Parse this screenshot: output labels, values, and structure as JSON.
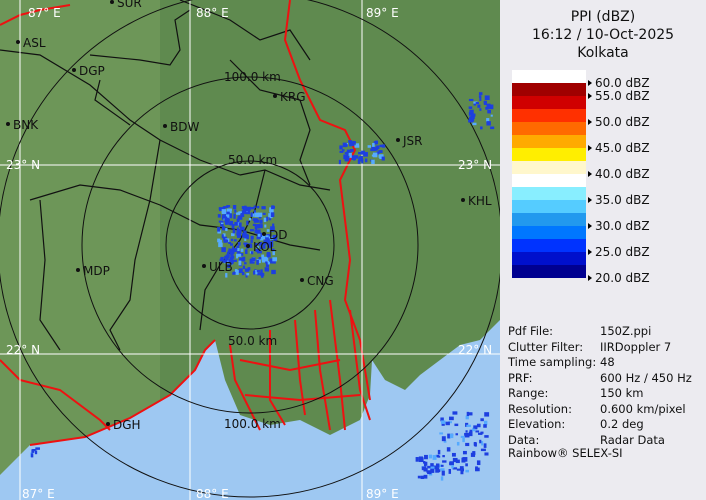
{
  "panel": {
    "title": "PPI (dBZ)",
    "datetime": "16:12 / 10-Oct-2025",
    "station": "Kolkata",
    "legend": [
      {
        "label": "60.0 dBZ",
        "color": "#ffffff"
      },
      {
        "label": "55.0 dBZ",
        "color": "#a00000"
      },
      {
        "label": "",
        "color": "#d00000"
      },
      {
        "label": "50.0 dBZ",
        "color": "#ff3000"
      },
      {
        "label": "",
        "color": "#ff6a00"
      },
      {
        "label": "45.0 dBZ",
        "color": "#ffaa00"
      },
      {
        "label": "",
        "color": "#ffee00"
      },
      {
        "label": "40.0 dBZ",
        "color": "#fff7cc"
      },
      {
        "label": "",
        "color": "#ffffff"
      },
      {
        "label": "35.0 dBZ",
        "color": "#88eeff"
      },
      {
        "label": "",
        "color": "#55ccff"
      },
      {
        "label": "30.0 dBZ",
        "color": "#2299ee"
      },
      {
        "label": "",
        "color": "#0077ff"
      },
      {
        "label": "25.0 dBZ",
        "color": "#0033ff"
      },
      {
        "label": "",
        "color": "#0010cc"
      },
      {
        "label": "20.0 dBZ",
        "color": "#000090"
      }
    ],
    "info": [
      {
        "key": "Pdf File:",
        "value": "150Z.ppi"
      },
      {
        "key": "Clutter Filter:",
        "value": "IIRDoppler 7"
      },
      {
        "key": "Time sampling:",
        "value": "48"
      },
      {
        "key": "PRF:",
        "value": "600 Hz / 450 Hz"
      },
      {
        "key": "Range:",
        "value": "150 km"
      },
      {
        "key": "Resolution:",
        "value": "0.600 km/pixel"
      },
      {
        "key": "Elevation:",
        "value": "0.2 deg"
      },
      {
        "key": "Data:",
        "value": "Radar Data"
      }
    ],
    "credit": "Rainbow® SELEX-SI"
  },
  "map": {
    "colors": {
      "land": "#5f8a4f",
      "sea": "#9ec8f2",
      "border": "#ee1111",
      "district": "#111111",
      "echo": "#1d3fe0"
    },
    "range_rings": [
      "50.0 km",
      "100.0 km",
      "50.0 km",
      "100.0 km"
    ],
    "grid_labels": {
      "lon": [
        "87° E",
        "88° E",
        "89° E",
        "87° E",
        "88° E",
        "89° E"
      ],
      "lat": [
        "23° N",
        "23° N",
        "22° N",
        "22° N"
      ]
    },
    "places": [
      "SUR",
      "ASL",
      "DGP",
      "BNK",
      "BDW",
      "KRG",
      "JSR",
      "KHL",
      "DD",
      "KOL",
      "ULB",
      "CNG",
      "MDP",
      "DGH"
    ]
  }
}
